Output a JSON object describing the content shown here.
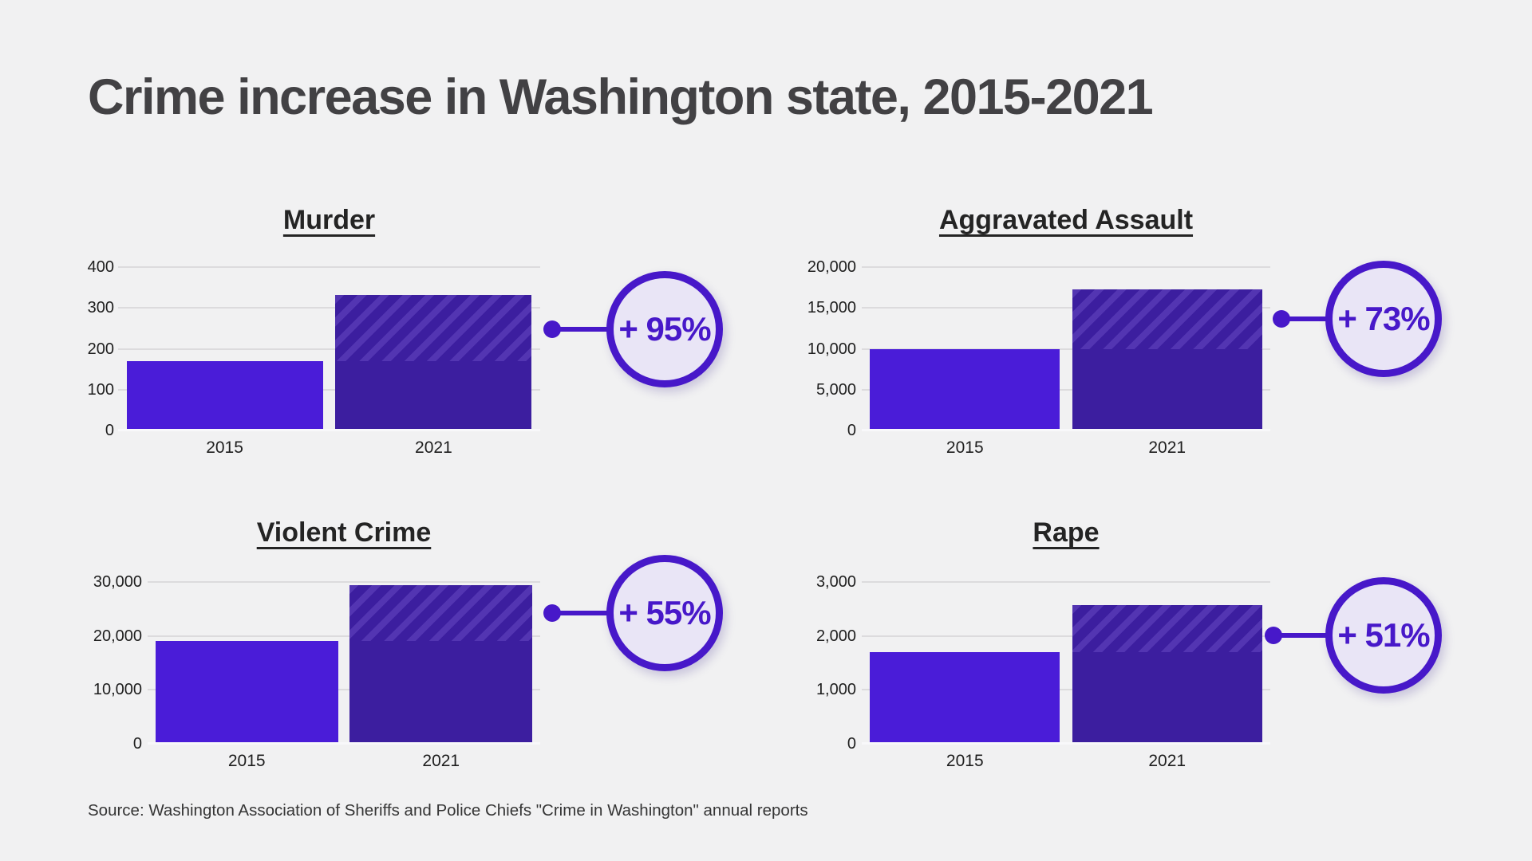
{
  "page": {
    "title": "Crime increase in Washington state, 2015-2021",
    "source": "Source: Washington Association of Sheriffs and Police Chiefs \"Crime in Washington\" annual reports"
  },
  "colors": {
    "background": "#f1f1f2",
    "title_text": "#424144",
    "bar_2015": "#4a1cd8",
    "bar_2021": "#3c1e9f",
    "hatch_stripe": "#5335b2",
    "badge_accent": "#4718c9",
    "badge_fill": "#e9e5f6",
    "gridline": "#dcdbdd"
  },
  "chart_data": [
    {
      "type": "bar",
      "title": "Murder",
      "categories": [
        "2015",
        "2021"
      ],
      "values": [
        170,
        331
      ],
      "change_label": "+ 95%",
      "ymax": 400,
      "yticks": [
        {
          "label": "400",
          "value": 400
        },
        {
          "label": "300",
          "value": 300
        },
        {
          "label": "200",
          "value": 200
        },
        {
          "label": "100",
          "value": 100
        },
        {
          "label": "0",
          "value": 0
        }
      ],
      "grid": "horizontal",
      "legend": "none",
      "increase_hatched": true
    },
    {
      "type": "bar",
      "title": "Aggravated Assault",
      "categories": [
        "2015",
        "2021"
      ],
      "values": [
        10000,
        17300
      ],
      "change_label": "+ 73%",
      "ymax": 20000,
      "yticks": [
        {
          "label": "20,000",
          "value": 20000
        },
        {
          "label": "15,000",
          "value": 15000
        },
        {
          "label": "10,000",
          "value": 10000
        },
        {
          "label": "5,000",
          "value": 5000
        },
        {
          "label": "0",
          "value": 0
        }
      ],
      "grid": "horizontal",
      "legend": "none",
      "increase_hatched": true
    },
    {
      "type": "bar",
      "title": "Violent Crime",
      "categories": [
        "2015",
        "2021"
      ],
      "values": [
        19000,
        29450
      ],
      "change_label": "+ 55%",
      "ymax": 30000,
      "yticks": [
        {
          "label": "30,000",
          "value": 30000
        },
        {
          "label": "20,000",
          "value": 20000
        },
        {
          "label": "10,000",
          "value": 10000
        },
        {
          "label": "0",
          "value": 0
        }
      ],
      "grid": "horizontal",
      "legend": "none",
      "increase_hatched": true
    },
    {
      "type": "bar",
      "title": "Rape",
      "categories": [
        "2015",
        "2021"
      ],
      "values": [
        1700,
        2570
      ],
      "change_label": "+ 51%",
      "ymax": 3000,
      "yticks": [
        {
          "label": "3,000",
          "value": 3000
        },
        {
          "label": "2,000",
          "value": 2000
        },
        {
          "label": "1,000",
          "value": 1000
        },
        {
          "label": "0",
          "value": 0
        }
      ],
      "grid": "horizontal",
      "legend": "none",
      "increase_hatched": true
    }
  ]
}
